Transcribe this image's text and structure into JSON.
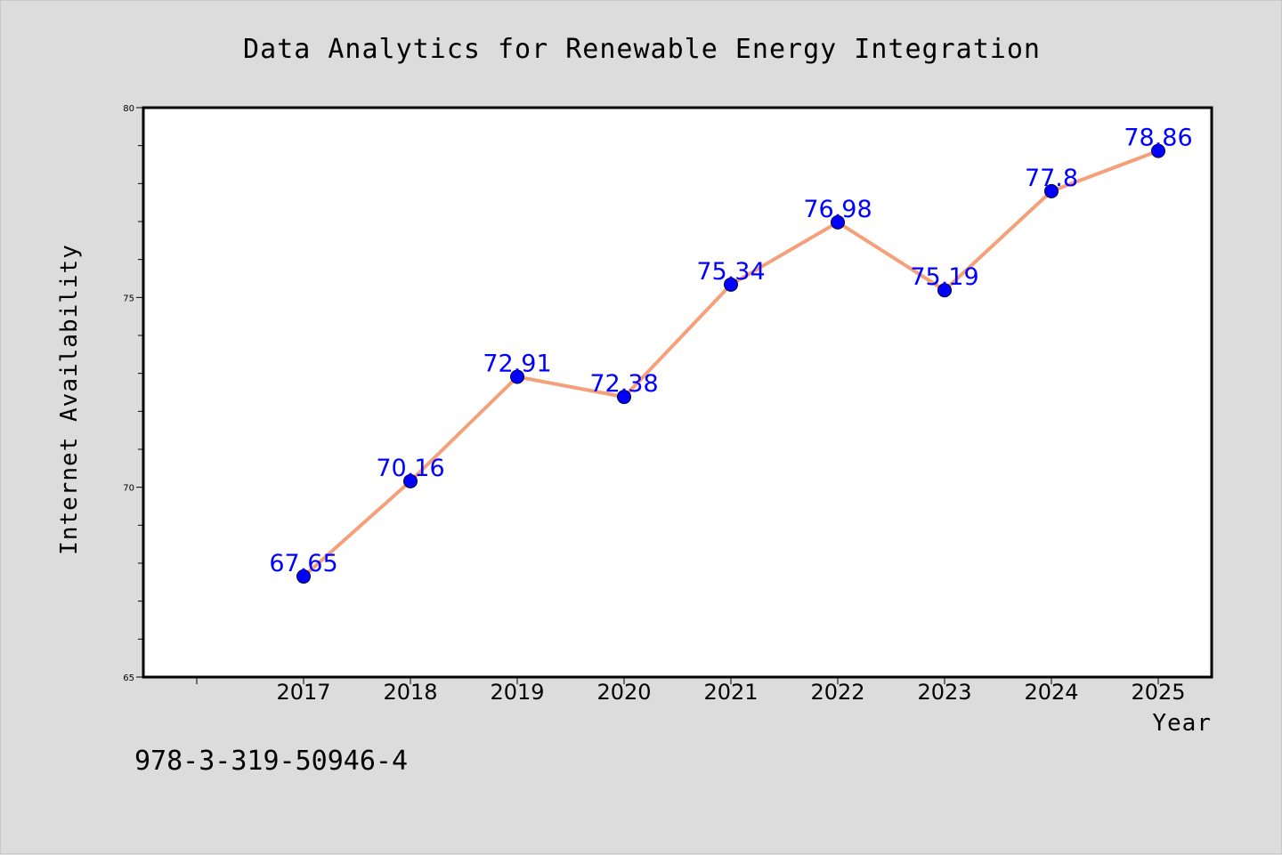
{
  "chart_data": {
    "type": "line",
    "title": "Data Analytics for Renewable Energy Integration",
    "xlabel": "Year",
    "ylabel": "Internet Availability",
    "x": [
      "2017",
      "2018",
      "2019",
      "2020",
      "2021",
      "2022",
      "2023",
      "2024",
      "2025"
    ],
    "series": [
      {
        "values": [
          67.65,
          70.16,
          72.91,
          72.38,
          75.34,
          76.98,
          75.19,
          77.8,
          78.86
        ],
        "data_labels": [
          "67.65",
          "70.16",
          "72.91",
          "72.38",
          "75.34",
          "76.98",
          "75.19",
          "77.8",
          "78.86"
        ],
        "line_color": "#f4a07a",
        "marker_color": "#0000ff",
        "label_color": "#0000ff"
      }
    ],
    "ylim": [
      65,
      80
    ],
    "yticks": [
      "65",
      "70",
      "75",
      "80"
    ],
    "grid": false,
    "legend": false
  },
  "footer": {
    "isbn": "978-3-319-50946-4"
  },
  "colors": {
    "background": "#dcdcdc",
    "plot_background": "#ffffff",
    "line": "#f4a07a",
    "marker": "#0000ff"
  }
}
